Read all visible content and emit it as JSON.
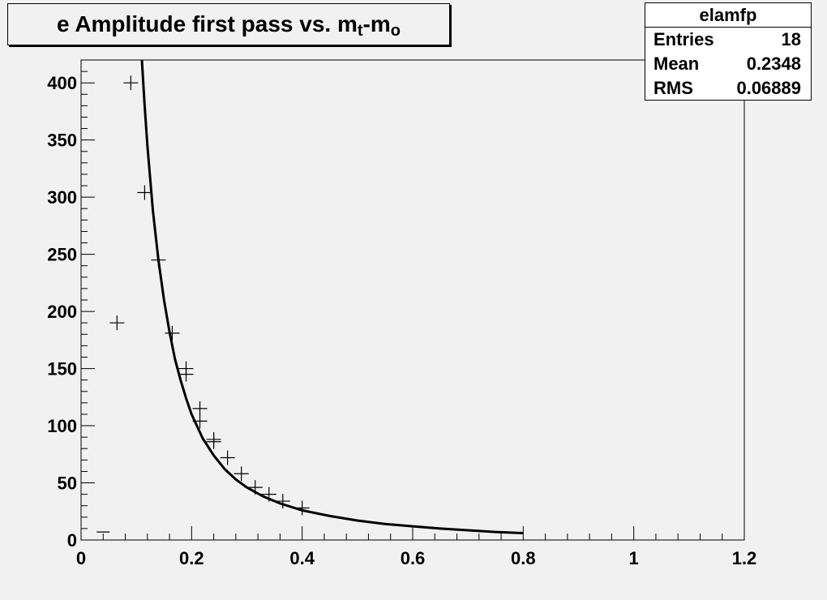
{
  "title": {
    "main": "e Amplitude first pass vs. m",
    "sub1": "t",
    "mid": "-m",
    "sub2": "o"
  },
  "stats": {
    "name": "elamfp",
    "rows": [
      {
        "label": "Entries",
        "value": "18"
      },
      {
        "label": "Mean",
        "value": "0.2348"
      },
      {
        "label": "RMS",
        "value": "0.06889"
      }
    ]
  },
  "chart_data": {
    "type": "scatter",
    "title": "e Amplitude first pass vs. mt-mo",
    "xlabel": "",
    "ylabel": "",
    "xlim": [
      0,
      1.2
    ],
    "ylim": [
      0,
      420
    ],
    "x_ticks": [
      "0",
      "0.2",
      "0.4",
      "0.6",
      "0.8",
      "1",
      "1.2"
    ],
    "y_ticks": [
      "0",
      "50",
      "100",
      "150",
      "200",
      "250",
      "300",
      "350",
      "400"
    ],
    "grid": false,
    "points": [
      {
        "x": 0.04,
        "y": 7
      },
      {
        "x": 0.065,
        "y": 190
      },
      {
        "x": 0.09,
        "y": 400
      },
      {
        "x": 0.115,
        "y": 304
      },
      {
        "x": 0.14,
        "y": 245
      },
      {
        "x": 0.165,
        "y": 181
      },
      {
        "x": 0.19,
        "y": 150
      },
      {
        "x": 0.19,
        "y": 145
      },
      {
        "x": 0.215,
        "y": 115
      },
      {
        "x": 0.215,
        "y": 104
      },
      {
        "x": 0.24,
        "y": 88
      },
      {
        "x": 0.24,
        "y": 86
      },
      {
        "x": 0.265,
        "y": 72
      },
      {
        "x": 0.29,
        "y": 58
      },
      {
        "x": 0.315,
        "y": 46
      },
      {
        "x": 0.34,
        "y": 40
      },
      {
        "x": 0.365,
        "y": 34
      },
      {
        "x": 0.4,
        "y": 28
      }
    ],
    "fit_curve": {
      "x": [
        0.11,
        0.115,
        0.12,
        0.13,
        0.14,
        0.15,
        0.16,
        0.17,
        0.18,
        0.19,
        0.2,
        0.22,
        0.24,
        0.26,
        0.28,
        0.3,
        0.33,
        0.36,
        0.4,
        0.45,
        0.5,
        0.55,
        0.6,
        0.65,
        0.7,
        0.75,
        0.8
      ],
      "y": [
        420,
        380,
        345,
        288,
        245,
        210,
        182,
        158,
        140,
        124,
        110,
        89,
        74,
        62,
        53,
        46,
        38,
        32,
        26,
        21,
        17,
        14,
        12,
        10,
        8.5,
        7,
        6
      ]
    }
  }
}
